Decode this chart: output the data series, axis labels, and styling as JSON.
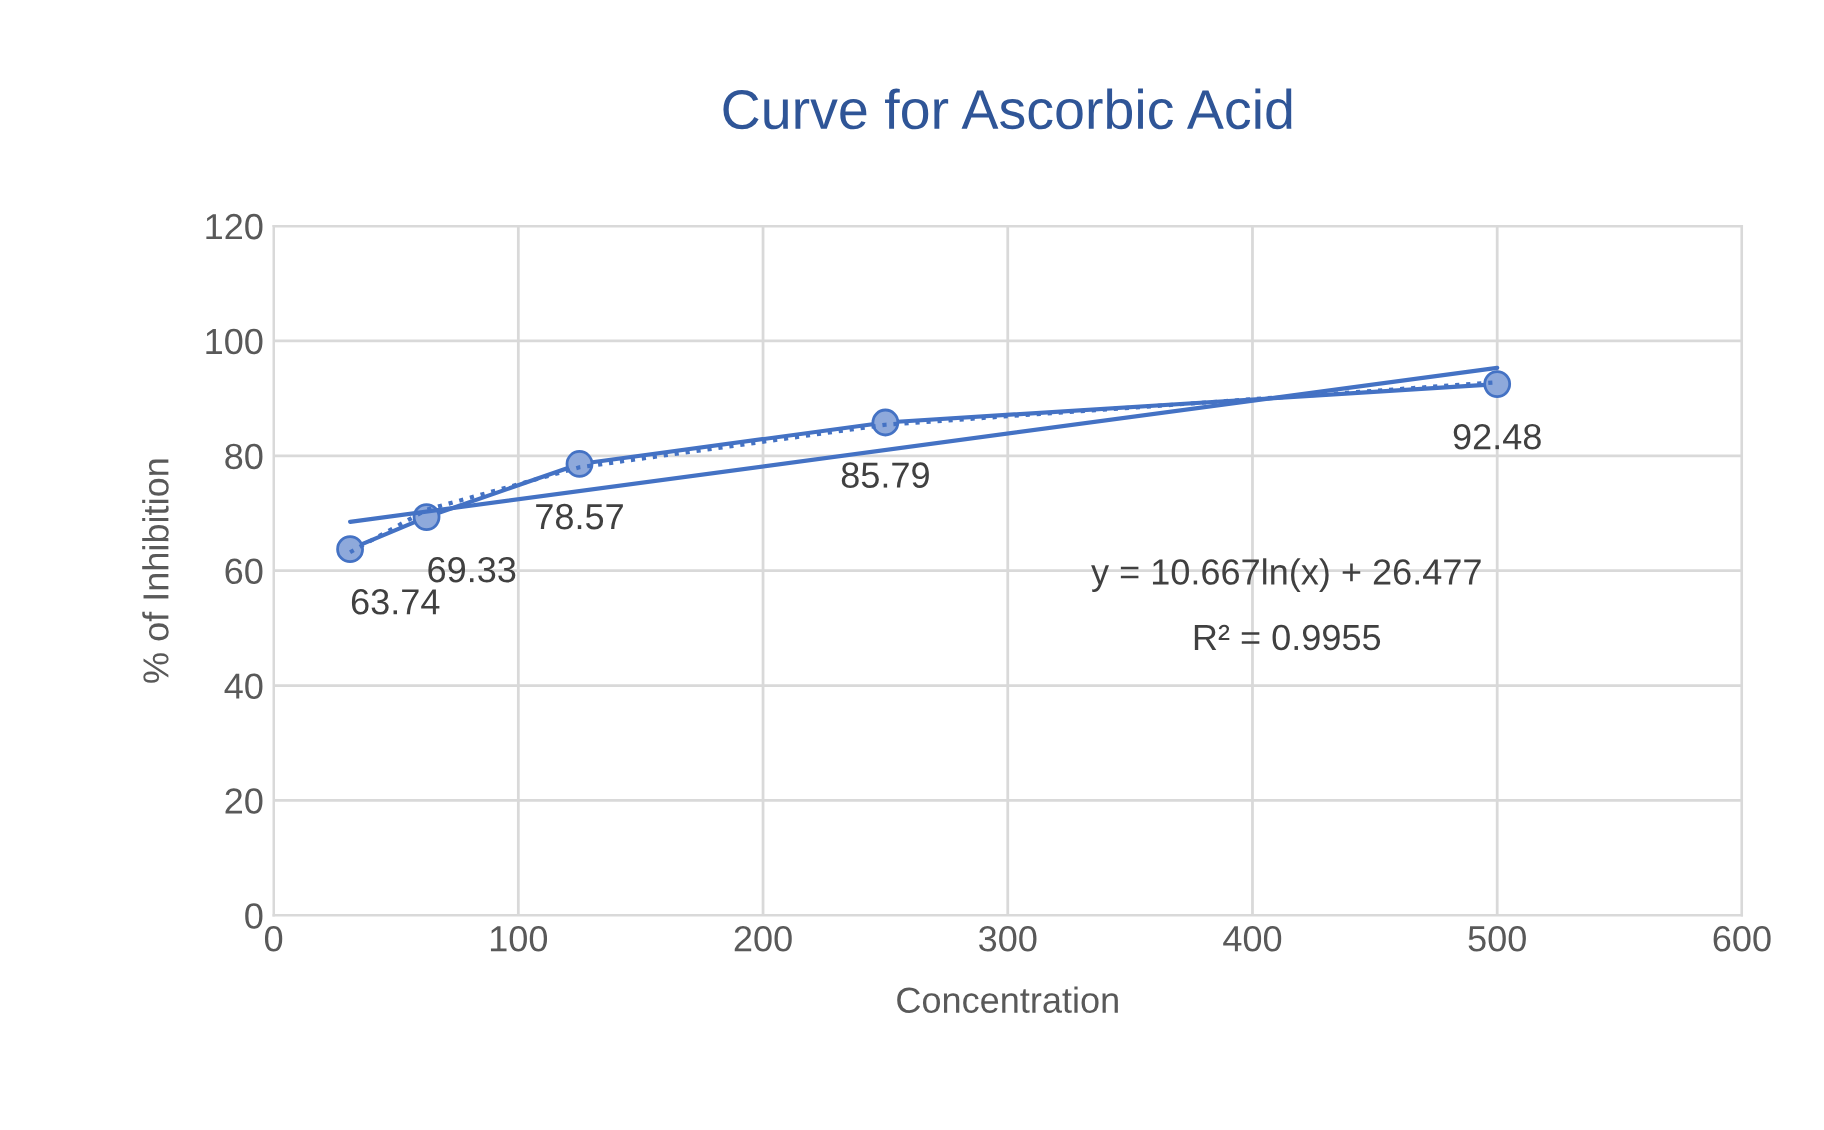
{
  "chart_data": {
    "type": "line",
    "title": "Curve for Ascorbic Acid",
    "xlabel": "Concentration",
    "ylabel": "% of Inhibition",
    "xlim": [
      0,
      600
    ],
    "xticks": [
      0,
      100,
      200,
      300,
      400,
      500,
      600
    ],
    "ylim": [
      0,
      120
    ],
    "yticks": [
      0,
      20,
      40,
      60,
      80,
      100,
      120
    ],
    "grid": true,
    "legend": false,
    "series": [
      {
        "color": "#4472c4",
        "marker": "circle",
        "line_style": "solid",
        "x": [
          31.25,
          62.5,
          125,
          250,
          500
        ],
        "values": [
          63.74,
          69.33,
          78.57,
          85.79,
          92.48
        ],
        "value_labels": [
          "63.74",
          "69.33",
          "78.57",
          "85.79",
          "92.48"
        ]
      },
      {
        "color": "#4472c4",
        "marker": "none",
        "line_style": "solid",
        "x": [
          31.25,
          500
        ],
        "values": [
          68.5,
          95.3
        ]
      },
      {
        "color": "#4472c4",
        "marker": "none",
        "line_style": "dotted",
        "x": [
          31.25,
          62.5,
          125,
          250,
          500
        ],
        "values": [
          63.2,
          70.6,
          78.0,
          85.4,
          92.8
        ]
      }
    ],
    "annotations": [
      "y = 10.667ln(x) + 26.477",
      "R² = 0.9955"
    ]
  }
}
